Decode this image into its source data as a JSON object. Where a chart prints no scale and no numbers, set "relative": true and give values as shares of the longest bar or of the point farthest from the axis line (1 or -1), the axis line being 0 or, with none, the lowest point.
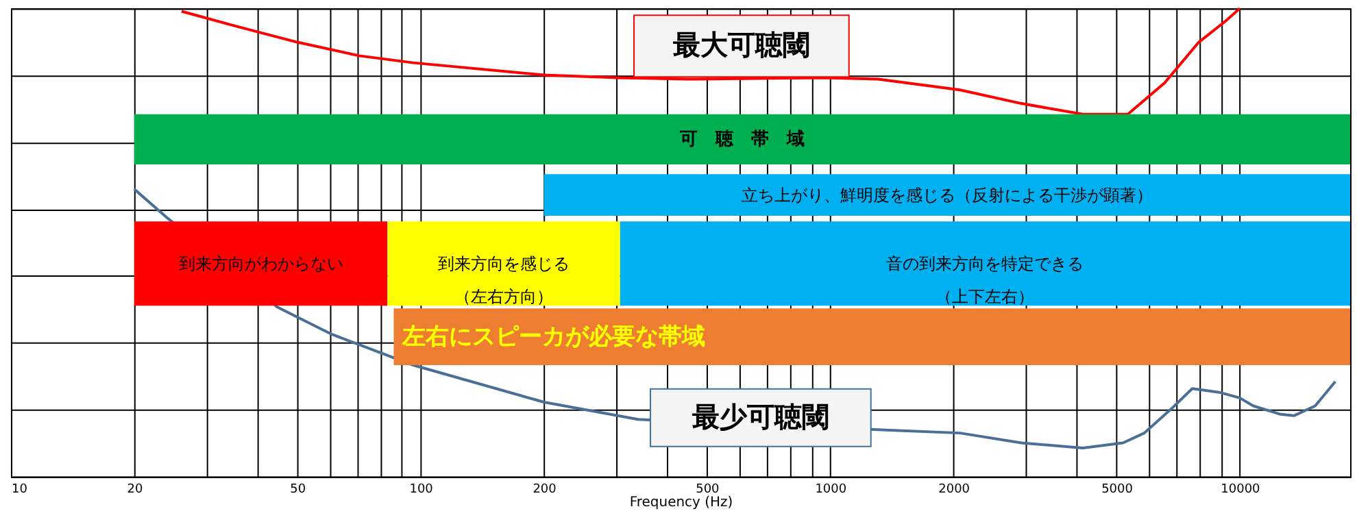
{
  "chart_data": {
    "type": "line",
    "relative": true,
    "xlabel": "Frequency (Hz)",
    "log": "x",
    "grid": true,
    "xlim": [
      10,
      18600
    ],
    "xticks": [
      10,
      20,
      {
        "value": 30,
        "label": null
      },
      {
        "value": 40,
        "label": null
      },
      50,
      {
        "value": 60,
        "label": null
      },
      {
        "value": 70,
        "label": null
      },
      {
        "value": 80,
        "label": null
      },
      {
        "value": 90,
        "label": null
      },
      100,
      200,
      {
        "value": 300,
        "label": null
      },
      {
        "value": 400,
        "label": null
      },
      500,
      {
        "value": 600,
        "label": null
      },
      {
        "value": 700,
        "label": null
      },
      {
        "value": 800,
        "label": null
      },
      {
        "value": 900,
        "label": null
      },
      1000,
      2000,
      {
        "value": 3000,
        "label": null
      },
      {
        "value": 4000,
        "label": null
      },
      5000,
      {
        "value": 6000,
        "label": null
      },
      {
        "value": 7000,
        "label": null
      },
      {
        "value": 8000,
        "label": null
      },
      {
        "value": 9000,
        "label": null
      },
      10000
    ],
    "series": [
      {
        "color": "#ff0000",
        "x": [
          26.1,
          35.5,
          50,
          70.8,
          96,
          200,
          304,
          447,
          962,
          1309,
          2074,
          2929,
          4137,
          5330,
          6555,
          7943,
          9260,
          10000
        ],
        "values": [
          0.994,
          0.962,
          0.928,
          0.899,
          0.884,
          0.858,
          0.852,
          0.849,
          0.852,
          0.849,
          0.826,
          0.797,
          0.774,
          0.774,
          0.841,
          0.928,
          0.974,
          1.0
        ]
      },
      {
        "color": "#4a6f96",
        "x": [
          20,
          24.2,
          44.7,
          60.7,
          96,
          200,
          340,
          1400,
          2074,
          2929,
          4137,
          5188,
          5848,
          6813,
          7656,
          8913,
          10000,
          10790,
          12590,
          13560,
          15280,
          17110
        ],
        "values": [
          0.614,
          0.551,
          0.362,
          0.304,
          0.238,
          0.159,
          0.122,
          0.099,
          0.093,
          0.072,
          0.061,
          0.072,
          0.093,
          0.145,
          0.188,
          0.18,
          0.168,
          0.151,
          0.133,
          0.13,
          0.151,
          0.203
        ]
      }
    ],
    "bands": [
      {
        "axis": "x",
        "from": 20,
        "to": 18600,
        "label": "可　聴　帯　域",
        "color": "#00b050"
      },
      {
        "axis": "x",
        "from": 200,
        "to": 18600,
        "label": "立ち上がり、鮮明度を感じる（反射による干渉が顕著）",
        "color": "#00b0f0"
      },
      {
        "axis": "x",
        "from": 20,
        "to": 83,
        "label": "到来方向がわからない",
        "color": "#ff0000"
      },
      {
        "axis": "x",
        "from": 83,
        "to": 307,
        "label": "到来方向を感じる（左右方向）",
        "color": "#ffff00"
      },
      {
        "axis": "x",
        "from": 307,
        "to": 18600,
        "label": "音の到来方向を特定できる（上下左右）",
        "color": "#00b0f0"
      },
      {
        "axis": "x",
        "from": 86,
        "to": 18600,
        "label": "左右にスピーカが必要な帯域",
        "color": "#ed7d31"
      }
    ],
    "annotations": [
      "最大可聴閾",
      "最少可聴閾"
    ]
  }
}
